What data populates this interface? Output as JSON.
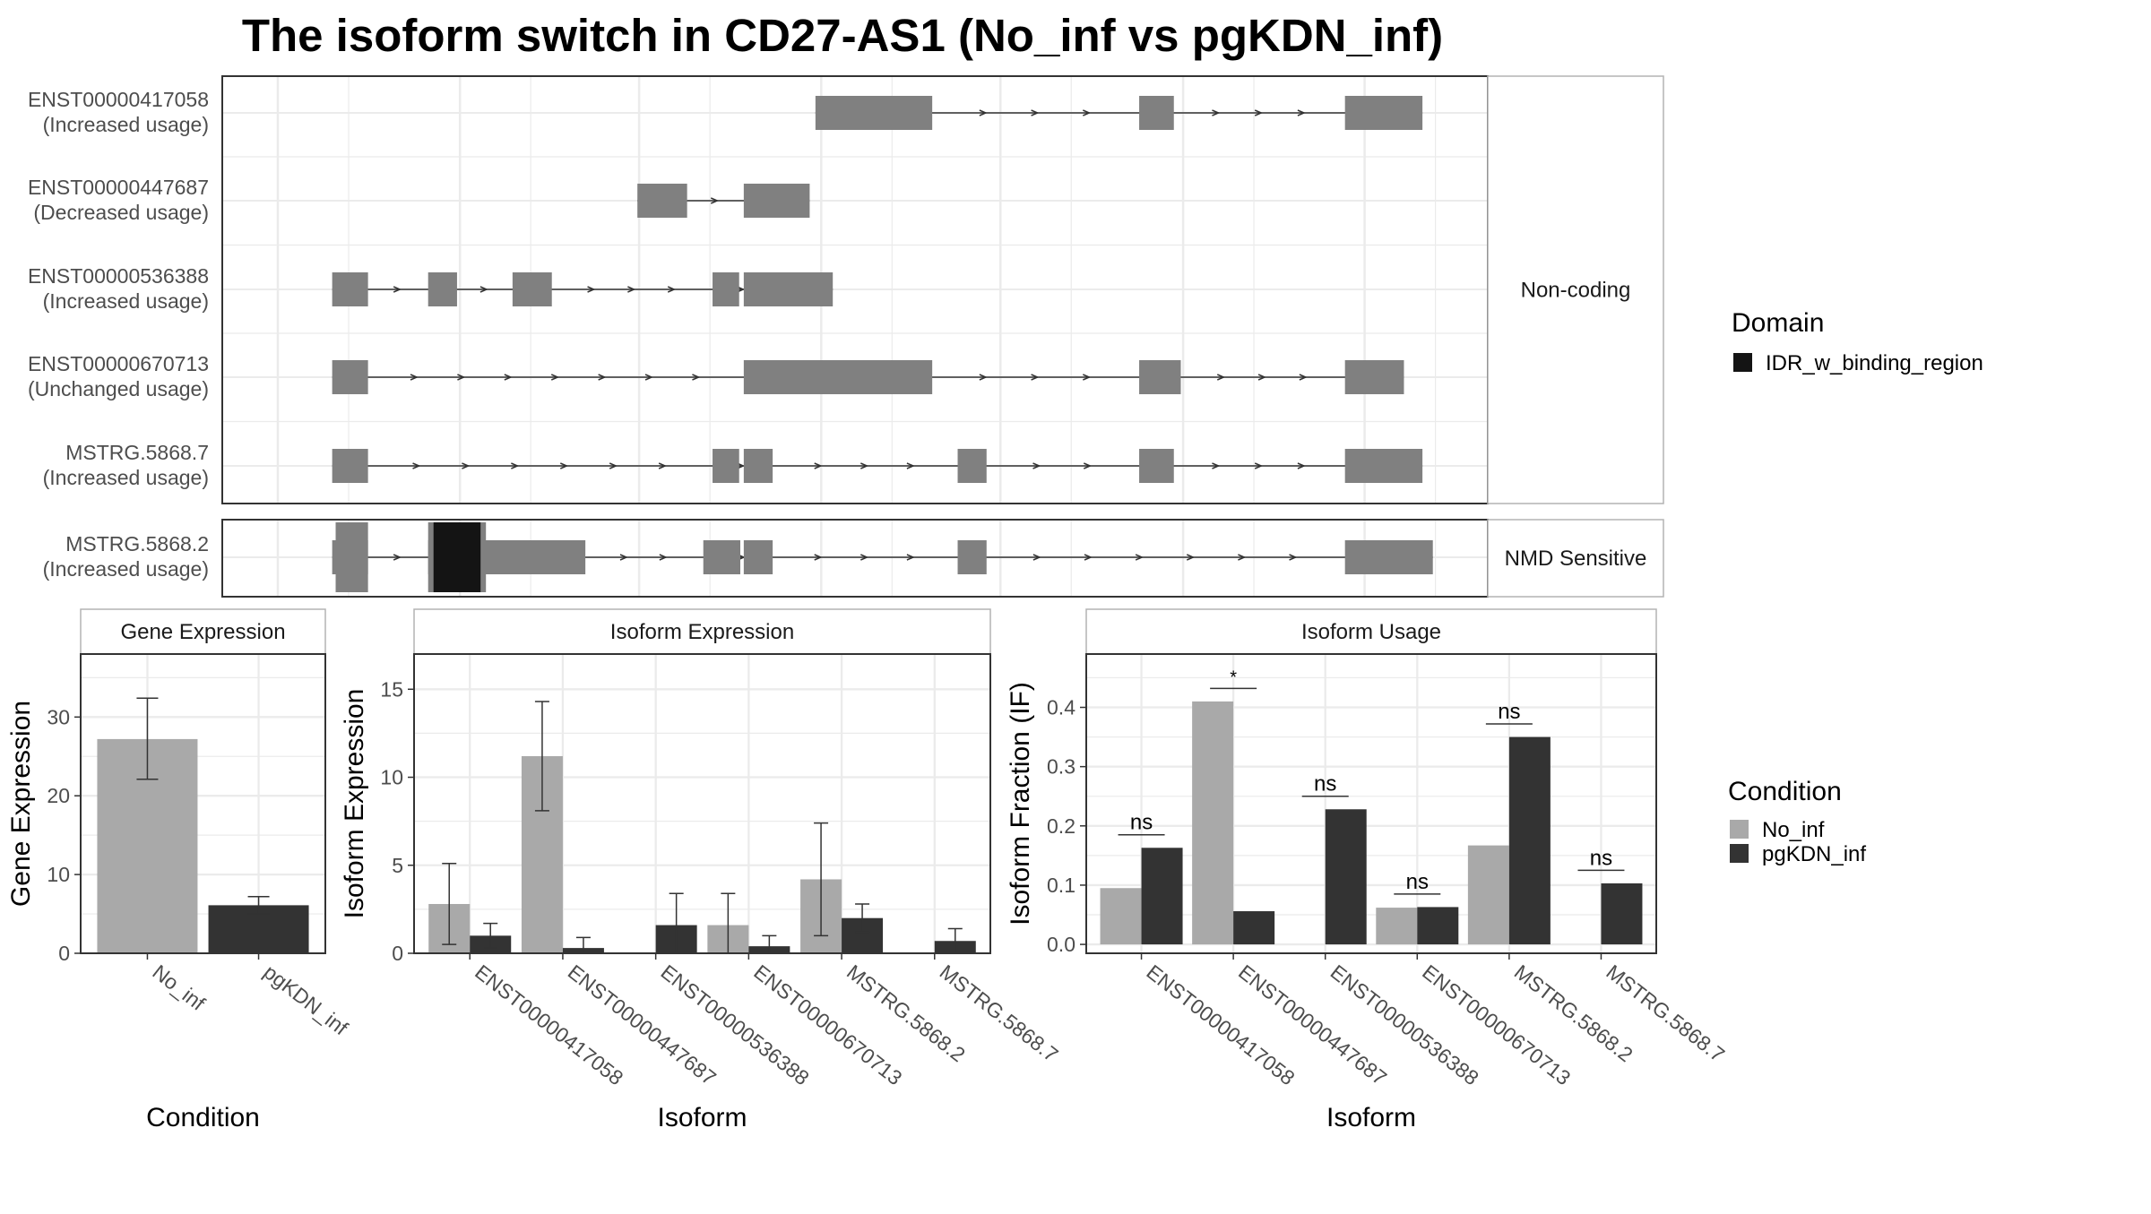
{
  "title": "The isoform switch in CD27-AS1 (No_inf vs pgKDN_inf)",
  "colors": {
    "exon": "#808080",
    "domain": "#141414",
    "no_inf": "#A9A9A9",
    "pgkdn_inf": "#333333",
    "grid": "#EBEBEB",
    "border": "#333333",
    "strip": "#ffffff"
  },
  "transcripts": {
    "panels": [
      {
        "label": "Non-coding",
        "rows": [
          {
            "id": "ENST00000417058",
            "usage": "(Increased usage)",
            "exons": [
              [
                0.465,
                0.566
              ],
              [
                0.745,
                0.775
              ],
              [
                0.923,
                0.99
              ]
            ],
            "domains": []
          },
          {
            "id": "ENST00000447687",
            "usage": "(Decreased usage)",
            "exons": [
              [
                0.311,
                0.354
              ],
              [
                0.403,
                0.46
              ]
            ],
            "domains": []
          },
          {
            "id": "ENST00000536388",
            "usage": "(Increased usage)",
            "exons": [
              [
                0.047,
                0.078
              ],
              [
                0.13,
                0.155
              ],
              [
                0.203,
                0.237
              ],
              [
                0.376,
                0.399
              ],
              [
                0.403,
                0.48
              ]
            ],
            "domains": []
          },
          {
            "id": "ENST00000670713",
            "usage": "(Unchanged usage)",
            "exons": [
              [
                0.047,
                0.078
              ],
              [
                0.403,
                0.566
              ],
              [
                0.745,
                0.781
              ],
              [
                0.923,
                0.974
              ]
            ],
            "domains": []
          },
          {
            "id": "MSTRG.5868.7",
            "usage": "(Increased usage)",
            "exons": [
              [
                0.047,
                0.078
              ],
              [
                0.376,
                0.399
              ],
              [
                0.403,
                0.428
              ],
              [
                0.588,
                0.613
              ],
              [
                0.745,
                0.775
              ],
              [
                0.923,
                0.99
              ]
            ],
            "domains": []
          }
        ]
      },
      {
        "label": "NMD Sensitive",
        "rows": [
          {
            "id": "MSTRG.5868.2",
            "usage": "(Increased usage)",
            "exons": [
              [
                0.047,
                0.078
              ],
              [
                0.13,
                0.266
              ],
              [
                0.368,
                0.4
              ],
              [
                0.403,
                0.428
              ],
              [
                0.588,
                0.613
              ],
              [
                0.923,
                0.999
              ]
            ],
            "domains": [
              [
                0.05,
                0.078
              ],
              [
                0.13,
                0.18
              ]
            ]
          }
        ]
      }
    ],
    "legend": {
      "title": "Domain",
      "items": [
        "IDR_w_binding_region"
      ]
    }
  },
  "conditions": [
    "No_inf",
    "pgKDN_inf"
  ],
  "condition_legend_title": "Condition",
  "chart_data": [
    {
      "type": "bar",
      "title": "Gene Expression",
      "xlabel": "Condition",
      "ylabel": "Gene Expression",
      "ylim": [
        0,
        38
      ],
      "yticks": [
        0,
        10,
        20,
        30
      ],
      "categories": [
        "No_inf",
        "pgKDN_inf"
      ],
      "values": [
        27.2,
        6.1
      ],
      "errors": [
        [
          22.1,
          32.4
        ],
        [
          5.0,
          7.2
        ]
      ],
      "colors": [
        "no_inf",
        "pgkdn_inf"
      ]
    },
    {
      "type": "bar",
      "title": "Isoform Expression",
      "xlabel": "Isoform",
      "ylabel": "Isoform Expression",
      "ylim": [
        0,
        17
      ],
      "yticks": [
        0,
        5,
        10,
        15
      ],
      "categories": [
        "ENST00000417058",
        "ENST00000447687",
        "ENST00000536388",
        "ENST00000670713",
        "MSTRG.5868.2",
        "MSTRG.5868.7"
      ],
      "series": [
        {
          "name": "No_inf",
          "values": [
            2.8,
            11.2,
            0.0,
            1.6,
            4.2,
            0.0
          ],
          "errors": [
            [
              0.5,
              5.1
            ],
            [
              8.1,
              14.3
            ],
            [
              0,
              0
            ],
            [
              0.0,
              3.4
            ],
            [
              1.0,
              7.4
            ],
            [
              0,
              0
            ]
          ]
        },
        {
          "name": "pgKDN_inf",
          "values": [
            1.0,
            0.3,
            1.6,
            0.4,
            2.0,
            0.7
          ],
          "errors": [
            [
              0.3,
              1.7
            ],
            [
              0.0,
              0.9
            ],
            [
              0.0,
              3.4
            ],
            [
              0.0,
              1.0
            ],
            [
              1.2,
              2.8
            ],
            [
              0.0,
              1.4
            ]
          ]
        }
      ]
    },
    {
      "type": "bar",
      "title": "Isoform Usage",
      "xlabel": "Isoform",
      "ylabel": "Isoform Fraction (IF)",
      "ylim": [
        -0.015,
        0.49
      ],
      "yticks": [
        0.0,
        0.1,
        0.2,
        0.3,
        0.4
      ],
      "categories": [
        "ENST00000417058",
        "ENST00000447687",
        "ENST00000536388",
        "ENST00000670713",
        "MSTRG.5868.2",
        "MSTRG.5868.7"
      ],
      "series": [
        {
          "name": "No_inf",
          "values": [
            0.095,
            0.41,
            0.0,
            0.062,
            0.167,
            0.0
          ]
        },
        {
          "name": "pgKDN_inf",
          "values": [
            0.163,
            0.056,
            0.228,
            0.063,
            0.35,
            0.103
          ]
        }
      ],
      "significance": [
        {
          "label": "ns",
          "y": 0.185
        },
        {
          "label": "*",
          "y": 0.432
        },
        {
          "label": "ns",
          "y": 0.25
        },
        {
          "label": "ns",
          "y": 0.085
        },
        {
          "label": "ns",
          "y": 0.372
        },
        {
          "label": "ns",
          "y": 0.125
        }
      ]
    }
  ]
}
